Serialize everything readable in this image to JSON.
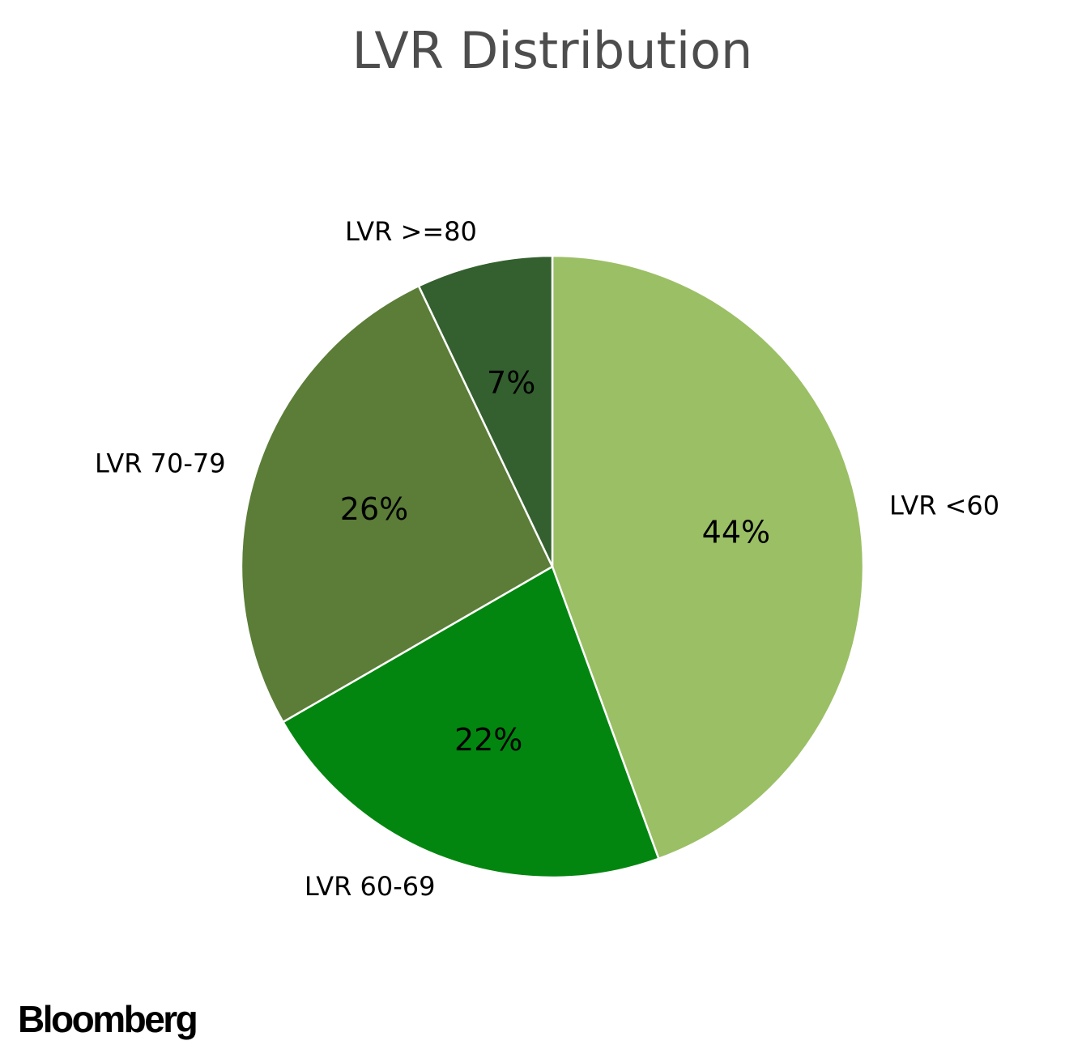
{
  "chart_data": {
    "type": "pie",
    "title": "LVR Distribution",
    "slices": [
      {
        "label": "LVR <60",
        "value": 44,
        "pct_label": "44%",
        "color": "#9bbf65"
      },
      {
        "label": "LVR 60-69",
        "value": 22,
        "pct_label": "22%",
        "color": "#02860f"
      },
      {
        "label": "LVR 70-79",
        "value": 26,
        "pct_label": "26%",
        "color": "#5b7d37"
      },
      {
        "label": "LVR >=80",
        "value": 7,
        "pct_label": "7%",
        "color": "#33602e"
      }
    ],
    "start_angle": "90 degrees (top)",
    "direction": "clockwise",
    "edge_color": "#ffffff"
  },
  "branding": {
    "logo_text": "Bloomberg"
  }
}
